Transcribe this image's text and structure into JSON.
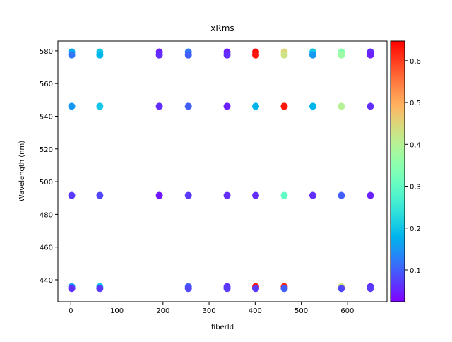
{
  "chart_data": {
    "type": "scatter",
    "title": "xRms",
    "x_label": "fiberId",
    "y_label": "Wavelength (nm)",
    "x": [
      2,
      2,
      2,
      2,
      2,
      2,
      63,
      63,
      63,
      63,
      63,
      63,
      192,
      192,
      192,
      192,
      255,
      255,
      255,
      255,
      255,
      255,
      339,
      339,
      339,
      339,
      339,
      339,
      401,
      401,
      401,
      401,
      401,
      401,
      463,
      463,
      463,
      463,
      463,
      463,
      525,
      525,
      525,
      525,
      587,
      587,
      587,
      587,
      587,
      587,
      650,
      650,
      650,
      650,
      650,
      650
    ],
    "y": [
      579.3,
      577.5,
      546.1,
      491.6,
      435.8,
      434.7,
      579.3,
      577.5,
      546.1,
      491.6,
      435.8,
      434.7,
      579.3,
      577.5,
      546.1,
      491.6,
      579.3,
      577.5,
      546.1,
      491.6,
      435.8,
      434.7,
      579.3,
      577.5,
      546.1,
      491.6,
      435.8,
      434.7,
      579.3,
      577.5,
      546.1,
      491.6,
      435.8,
      434.7,
      579.3,
      577.5,
      546.1,
      491.6,
      435.8,
      434.7,
      579.3,
      577.5,
      546.1,
      491.6,
      579.3,
      577.5,
      546.1,
      491.6,
      435.8,
      434.7,
      579.3,
      577.5,
      546.1,
      491.6,
      435.8,
      434.7
    ],
    "color_values": [
      0.17,
      0.12,
      0.15,
      0.07,
      0.15,
      0.06,
      0.2,
      0.18,
      0.2,
      0.08,
      0.2,
      0.07,
      0.05,
      0.06,
      0.06,
      0.04,
      0.12,
      0.1,
      0.1,
      0.07,
      0.1,
      0.08,
      0.05,
      0.06,
      0.05,
      0.06,
      0.06,
      0.07,
      0.64,
      0.63,
      0.18,
      0.06,
      0.63,
      0.07,
      0.45,
      0.43,
      0.63,
      0.3,
      0.62,
      0.1,
      0.2,
      0.15,
      0.18,
      0.06,
      0.35,
      0.37,
      0.4,
      0.1,
      0.43,
      0.08,
      0.06,
      0.05,
      0.06,
      0.05,
      0.06,
      0.07
    ],
    "colormap": "rainbow",
    "xlim": [
      -28,
      686
    ],
    "xticks": [
      0,
      100,
      200,
      300,
      400,
      500,
      600
    ],
    "ylim": [
      426.6,
      586
    ],
    "yticks": [
      440,
      460,
      480,
      500,
      520,
      540,
      560,
      580
    ],
    "clim": [
      0.024,
      0.647
    ],
    "cticks": [
      0.1,
      0.2,
      0.3,
      0.4,
      0.5,
      0.6
    ]
  }
}
